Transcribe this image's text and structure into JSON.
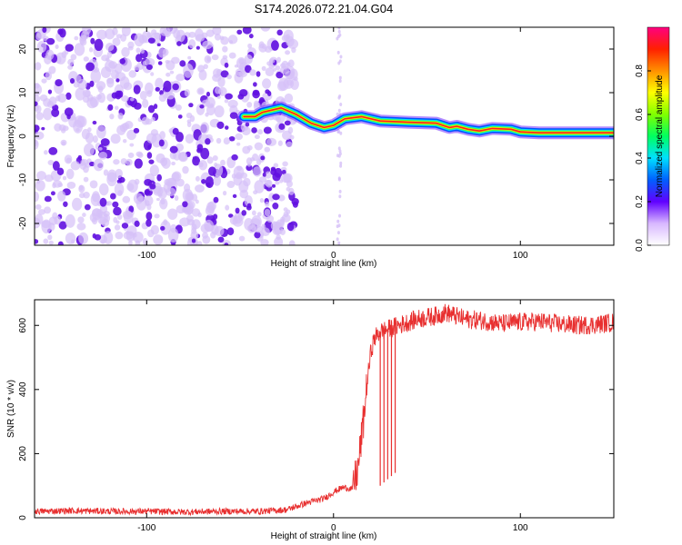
{
  "title": "S174.2026.072.21.04.G04",
  "chart_data": [
    {
      "type": "heatmap",
      "title": "S174.2026.072.21.04.G04",
      "xlabel": "Height of straight line (km)",
      "ylabel": "Frequency (Hz)",
      "xlim": [
        -160,
        150
      ],
      "ylim": [
        -25,
        25
      ],
      "x_ticks": [
        "-100",
        "0",
        "100"
      ],
      "y_ticks": [
        "-20",
        "-10",
        "0",
        "10",
        "20"
      ],
      "colorbar": {
        "label": "Normalized spectral amplitude",
        "range": [
          0,
          1
        ],
        "ticks": [
          "0.0",
          "0.2",
          "0.4",
          "0.6",
          "0.8"
        ]
      },
      "ridge": {
        "description": "dominant frequency track of the signal",
        "x": [
          -48,
          -42,
          -38,
          -33,
          -28,
          -20,
          -12,
          -5,
          0,
          6,
          15,
          25,
          40,
          55,
          62,
          66,
          72,
          78,
          85,
          95,
          100,
          110,
          150
        ],
        "y": [
          4.5,
          4.5,
          5.5,
          6,
          6.5,
          5,
          3,
          2,
          2.5,
          4,
          4.5,
          3.5,
          3.2,
          3,
          2,
          2.3,
          1.6,
          1.2,
          1.8,
          1.6,
          1,
          0.8,
          0.8
        ]
      },
      "noise_region_x": [
        -160,
        -20
      ]
    },
    {
      "type": "line",
      "xlabel": "Height of straight line (km)",
      "ylabel": "SNR (10 * v/v)",
      "xlim": [
        -160,
        150
      ],
      "ylim": [
        0,
        680
      ],
      "x_ticks": [
        "-100",
        "0",
        "100"
      ],
      "y_ticks": [
        "0",
        "200",
        "400",
        "600"
      ],
      "series": [
        {
          "name": "SNR",
          "color": "#e83030",
          "x": [
            -160,
            -140,
            -120,
            -100,
            -80,
            -60,
            -40,
            -25,
            -15,
            -5,
            0,
            5,
            10,
            13,
            16,
            18,
            20,
            22,
            25,
            30,
            35,
            40,
            45,
            50,
            55,
            60,
            70,
            80,
            90,
            100,
            110,
            120,
            130,
            140,
            150
          ],
          "y": [
            20,
            22,
            20,
            20,
            18,
            20,
            20,
            25,
            45,
            60,
            80,
            95,
            90,
            150,
            300,
            420,
            520,
            560,
            580,
            590,
            600,
            610,
            620,
            625,
            630,
            640,
            620,
            615,
            605,
            610,
            612,
            605,
            600,
            602,
            610
          ]
        }
      ],
      "dropouts": [
        {
          "x": 25,
          "y": 100
        },
        {
          "x": 27,
          "y": 110
        },
        {
          "x": 29,
          "y": 120
        },
        {
          "x": 31,
          "y": 130
        },
        {
          "x": 33,
          "y": 140
        }
      ]
    }
  ],
  "colors": {
    "line": "#e83030",
    "noise": "#6010e0",
    "axis": "#000000"
  }
}
